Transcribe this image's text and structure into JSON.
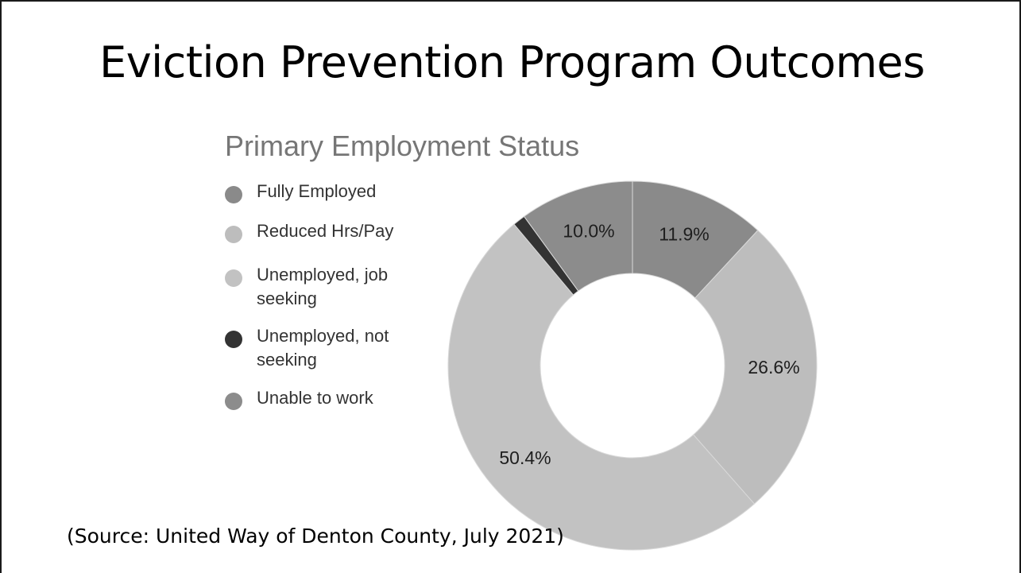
{
  "slide": {
    "title": "Eviction Prevention Program Outcomes",
    "source": "(Source: United Way of Denton County, July 2021)"
  },
  "chart_data": {
    "type": "pie",
    "donut": true,
    "title": "Primary Employment Status",
    "legend_position": "left",
    "categories": [
      "Fully Employed",
      "Reduced Hrs/Pay",
      "Unemployed, job seeking",
      "Unemployed, not seeking",
      "Unable to work"
    ],
    "legend_labels": [
      [
        "Fully Employed"
      ],
      [
        "Reduced Hrs/Pay"
      ],
      [
        "Unemployed, job",
        "seeking"
      ],
      [
        "Unemployed, not",
        "seeking"
      ],
      [
        "Unable to work"
      ]
    ],
    "values": [
      11.9,
      26.6,
      50.4,
      1.1,
      10.0
    ],
    "data_labels": [
      "11.9%",
      "26.6%",
      "50.4%",
      "",
      "10.0%"
    ],
    "colors": [
      "#8a8a8a",
      "#bdbdbd",
      "#c2c2c2",
      "#333333",
      "#8c8c8c"
    ]
  }
}
